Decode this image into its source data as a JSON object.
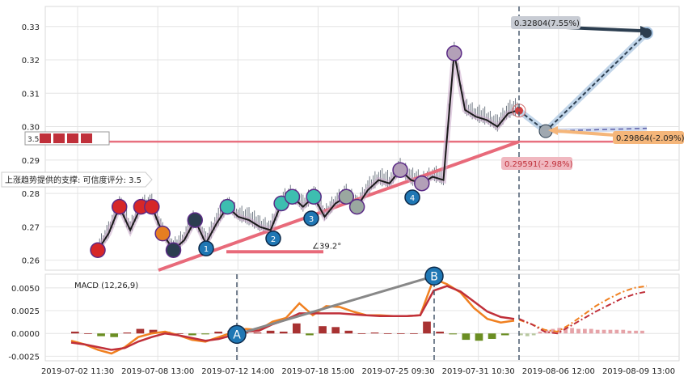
{
  "chart_data": {
    "type": "line",
    "price_panel": {
      "ylim": [
        0.257,
        0.336
      ],
      "yticks": [
        "0.33",
        "0.32",
        "0.31",
        "0.30",
        "0.29",
        "0.28",
        "0.27",
        "0.26"
      ],
      "ytick_values": [
        0.33,
        0.32,
        0.31,
        0.3,
        0.29,
        0.28,
        0.27,
        0.26
      ],
      "grid": true,
      "support_label": "上涨趋势提供的支撑: 可信度评分: 3.5",
      "small_label": "3.5",
      "angle_label": "∠39.2°",
      "price_series": [
        0.263,
        0.268,
        0.276,
        0.269,
        0.276,
        0.276,
        0.268,
        0.263,
        0.266,
        0.272,
        0.265,
        0.271,
        0.276,
        0.273,
        0.272,
        0.27,
        0.269,
        0.277,
        0.279,
        0.276,
        0.279,
        0.273,
        0.277,
        0.279,
        0.276,
        0.281,
        0.284,
        0.283,
        0.287,
        0.284,
        0.283,
        0.285,
        0.284,
        0.322,
        0.305,
        0.303,
        0.302,
        0.3,
        0.304,
        0.305
      ],
      "annotations": [
        {
          "label": "0.32804(7.55%)",
          "value": 0.32804,
          "pct": "7.55%"
        },
        {
          "label": "0.29864(-2.09%)",
          "value": 0.29864,
          "pct": "-2.09%"
        },
        {
          "label": "0.29591(-2.98%)",
          "value": 0.29591,
          "pct": "-2.98%"
        }
      ],
      "pattern_points": [
        {
          "label": "1",
          "value": 0.2635
        },
        {
          "label": "2",
          "value": 0.2665
        },
        {
          "label": "3",
          "value": 0.2725
        },
        {
          "label": "4",
          "value": 0.2788
        }
      ],
      "support_level": 0.2955,
      "current_price": 0.3048
    },
    "macd_panel": {
      "title": "MACD (12,26,9)",
      "ylim": [
        -0.003,
        0.0065
      ],
      "yticks": [
        "0.0050",
        "0.0025",
        "0.0000",
        "-0.0025"
      ],
      "ytick_values": [
        0.005,
        0.0025,
        0.0,
        -0.0025
      ],
      "markers": [
        {
          "label": "A",
          "value": -0.0001
        },
        {
          "label": "B",
          "value": 0.0063
        }
      ],
      "macd_line": [
        -0.0008,
        -0.0012,
        -0.0018,
        -0.0022,
        -0.0015,
        -0.0004,
        0.0,
        0.0002,
        -0.0002,
        -0.0007,
        -0.0009,
        -0.0004,
        0.0001,
        0.0005,
        0.0004,
        0.0013,
        0.0017,
        0.0033,
        0.002,
        0.003,
        0.0029,
        0.0024,
        0.002,
        0.002,
        0.0019,
        0.0019,
        0.002,
        0.006,
        0.0054,
        0.0045,
        0.0028,
        0.0016,
        0.0012,
        0.0014
      ],
      "signal_line": [
        -0.001,
        -0.0012,
        -0.0015,
        -0.0018,
        -0.0016,
        -0.0009,
        -0.0004,
        0.0,
        -0.0002,
        -0.0005,
        -0.0008,
        -0.0006,
        -0.0002,
        0.0002,
        0.0003,
        0.001,
        0.0015,
        0.0022,
        0.0022,
        0.0022,
        0.0022,
        0.0021,
        0.002,
        0.0019,
        0.0019,
        0.0019,
        0.002,
        0.0047,
        0.0052,
        0.0046,
        0.0035,
        0.0024,
        0.0018,
        0.0016
      ],
      "histogram": [
        0.0002,
        0.0,
        -0.0003,
        -0.0004,
        0.0001,
        0.0005,
        0.0004,
        0.0002,
        0.0,
        -0.0002,
        -0.0001,
        0.0002,
        0.0003,
        0.0003,
        0.0001,
        0.0003,
        0.0002,
        0.0011,
        -0.0002,
        0.0008,
        0.0007,
        0.0003,
        0.0,
        0.0001,
        0.0,
        0.0,
        0.0,
        0.0013,
        0.0002,
        -0.0001,
        -0.0007,
        -0.0008,
        -0.0006,
        -0.0002
      ],
      "forecast_macd": [
        0.0015,
        0.001,
        0.0004,
        0.0002,
        0.001,
        0.002,
        0.003,
        0.0038,
        0.0045,
        0.005,
        0.0052
      ],
      "forecast_signal": [
        0.0016,
        0.001,
        0.0002,
        0.0,
        0.0008,
        0.0016,
        0.0024,
        0.0031,
        0.0038,
        0.0043,
        0.0046
      ],
      "forecast_histogram": [
        -0.0002,
        -0.0003,
        -0.0002,
        0.0002,
        0.0004,
        0.0005,
        0.0006,
        0.0006,
        0.0006,
        0.0005,
        0.0005,
        0.0005,
        0.0004,
        0.0004,
        0.0004,
        0.0004,
        0.0004,
        0.0003,
        0.0003,
        0.0003
      ]
    },
    "xticks": [
      "2019-07-02 11:30",
      "2019-07-08 13:00",
      "2019-07-12 14:00",
      "2019-07-18 15:00",
      "2019-07-25 09:30",
      "2019-07-31 10:30",
      "2019-08-06 12:00",
      "2019-08-09 13:00"
    ],
    "colors": {
      "price": "#1a1a1a",
      "support": "#e8707f",
      "support_line": "#e86a7a",
      "forecast": "#2c3e50",
      "forecast_alt": "#5b5ea6",
      "macd": "#f08020",
      "signal": "#c0303a",
      "hist_pos": "#a83232",
      "hist_neg": "#6b8e23",
      "hist_forecast": "#e6a3a8",
      "gray_line": "#888888",
      "marker_blue": "#1f77b4",
      "label_green": "#f5b67a"
    }
  }
}
